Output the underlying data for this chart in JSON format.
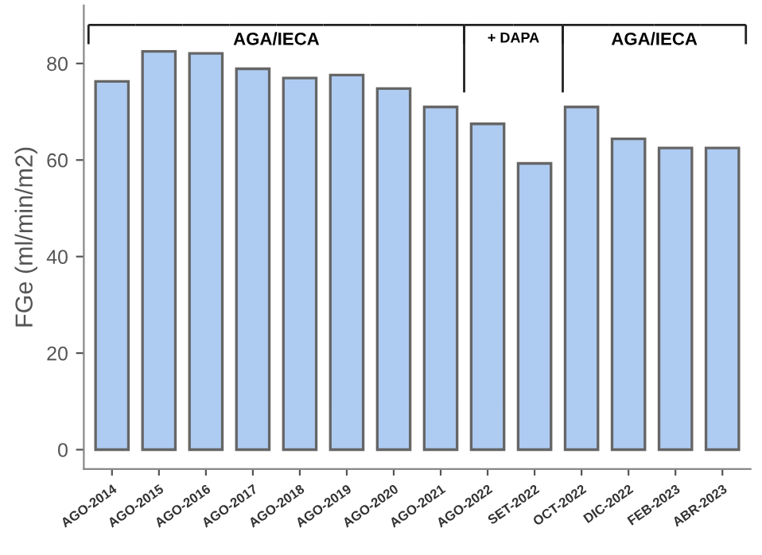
{
  "chart_data": {
    "type": "bar",
    "ylabel": "FGe (ml/min/m2)",
    "categories": [
      "AGO-2014",
      "AGO-2015",
      "AGO-2016",
      "AGO-2017",
      "AGO-2018",
      "AGO-2019",
      "AGO-2020",
      "AGO-2021",
      "AGO-2022",
      "SET-2022",
      "OCT-2022",
      "DIC-2022",
      "FEB-2023",
      "ABR-2023"
    ],
    "values": [
      76.3,
      82.5,
      82.1,
      78.9,
      77.0,
      77.6,
      74.8,
      71.0,
      67.5,
      59.3,
      71.0,
      64.4,
      62.5,
      62.5
    ],
    "color": "#aecbf2",
    "ylim": [
      -4,
      92
    ],
    "yticks": [
      0,
      20,
      40,
      60,
      80
    ],
    "grid": false,
    "annotations": [
      "AGA/IECA",
      "+ DAPA",
      "AGA/IECA"
    ]
  }
}
